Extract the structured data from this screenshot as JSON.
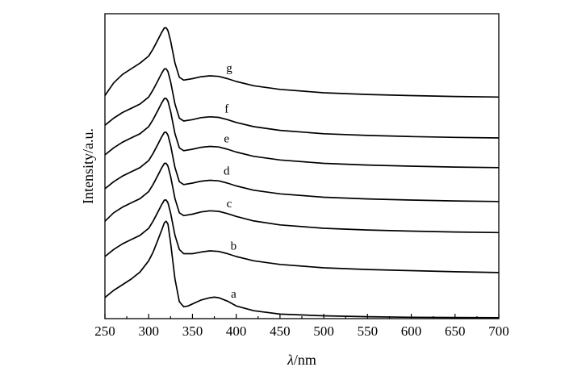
{
  "chart_data": {
    "type": "line",
    "title": "",
    "xlabel_symbol": "λ",
    "xlabel_unit": "/nm",
    "ylabel": "Intensity/a.u.",
    "xlim": [
      250,
      700
    ],
    "x_ticks": [
      "250",
      "300",
      "350",
      "400",
      "450",
      "500",
      "550",
      "600",
      "650",
      "700"
    ],
    "y_ticks_shown": false,
    "grid": false,
    "legend": "inline curve labels",
    "series": [
      {
        "name": "a",
        "x": [
          250,
          260,
          270,
          280,
          290,
          300,
          305,
          310,
          315,
          318,
          320,
          322,
          325,
          330,
          335,
          340,
          345,
          350,
          360,
          370,
          375,
          380,
          390,
          400,
          420,
          450,
          500,
          550,
          600,
          650,
          700
        ],
        "y": [
          0.75,
          1.0,
          1.2,
          1.4,
          1.65,
          2.05,
          2.35,
          2.75,
          3.15,
          3.4,
          3.45,
          3.35,
          2.7,
          1.4,
          0.6,
          0.42,
          0.45,
          0.52,
          0.66,
          0.74,
          0.76,
          0.74,
          0.62,
          0.45,
          0.28,
          0.16,
          0.1,
          0.07,
          0.05,
          0.04,
          0.03
        ]
      },
      {
        "name": "b",
        "x": [
          250,
          260,
          270,
          280,
          290,
          300,
          305,
          310,
          315,
          318,
          320,
          322,
          325,
          330,
          335,
          340,
          350,
          360,
          370,
          380,
          390,
          400,
          420,
          450,
          500,
          550,
          600,
          650,
          700
        ],
        "y": [
          2.2,
          2.45,
          2.65,
          2.8,
          2.95,
          3.2,
          3.45,
          3.75,
          4.05,
          4.2,
          4.2,
          4.1,
          3.75,
          2.95,
          2.45,
          2.3,
          2.3,
          2.36,
          2.4,
          2.38,
          2.3,
          2.2,
          2.05,
          1.92,
          1.8,
          1.74,
          1.7,
          1.66,
          1.63
        ]
      },
      {
        "name": "c",
        "x": [
          250,
          260,
          270,
          280,
          290,
          300,
          305,
          310,
          315,
          318,
          320,
          322,
          325,
          330,
          335,
          340,
          350,
          360,
          370,
          380,
          390,
          400,
          420,
          450,
          500,
          550,
          600,
          650,
          700
        ],
        "y": [
          3.45,
          3.75,
          3.95,
          4.1,
          4.25,
          4.5,
          4.75,
          5.05,
          5.35,
          5.5,
          5.5,
          5.4,
          5.05,
          4.25,
          3.75,
          3.65,
          3.7,
          3.78,
          3.82,
          3.8,
          3.72,
          3.62,
          3.46,
          3.32,
          3.2,
          3.14,
          3.1,
          3.07,
          3.05
        ]
      },
      {
        "name": "d",
        "x": [
          250,
          260,
          270,
          280,
          290,
          300,
          305,
          310,
          315,
          318,
          320,
          322,
          325,
          330,
          335,
          340,
          350,
          360,
          370,
          380,
          390,
          400,
          420,
          450,
          500,
          550,
          600,
          650,
          700
        ],
        "y": [
          4.6,
          4.85,
          5.05,
          5.2,
          5.35,
          5.6,
          5.85,
          6.15,
          6.45,
          6.6,
          6.6,
          6.5,
          6.15,
          5.35,
          4.85,
          4.75,
          4.8,
          4.87,
          4.9,
          4.88,
          4.8,
          4.7,
          4.55,
          4.42,
          4.3,
          4.24,
          4.2,
          4.17,
          4.15
        ]
      },
      {
        "name": "e",
        "x": [
          250,
          260,
          270,
          280,
          290,
          300,
          305,
          310,
          315,
          318,
          320,
          322,
          325,
          330,
          335,
          340,
          350,
          360,
          370,
          380,
          390,
          400,
          420,
          450,
          500,
          550,
          600,
          650,
          700
        ],
        "y": [
          5.8,
          6.05,
          6.25,
          6.4,
          6.55,
          6.8,
          7.05,
          7.35,
          7.65,
          7.8,
          7.8,
          7.7,
          7.35,
          6.55,
          6.05,
          5.95,
          6.0,
          6.07,
          6.1,
          6.08,
          6.0,
          5.9,
          5.75,
          5.62,
          5.5,
          5.44,
          5.4,
          5.37,
          5.35
        ]
      },
      {
        "name": "f",
        "x": [
          250,
          260,
          270,
          280,
          290,
          300,
          305,
          310,
          315,
          318,
          320,
          322,
          325,
          330,
          335,
          340,
          350,
          360,
          370,
          380,
          390,
          400,
          420,
          450,
          500,
          550,
          600,
          650,
          700
        ],
        "y": [
          6.85,
          7.1,
          7.3,
          7.45,
          7.6,
          7.85,
          8.1,
          8.4,
          8.7,
          8.85,
          8.85,
          8.75,
          8.4,
          7.6,
          7.1,
          7.0,
          7.05,
          7.12,
          7.15,
          7.13,
          7.05,
          6.95,
          6.8,
          6.67,
          6.55,
          6.49,
          6.45,
          6.42,
          6.4
        ]
      },
      {
        "name": "g",
        "x": [
          250,
          260,
          270,
          280,
          290,
          300,
          305,
          310,
          315,
          318,
          320,
          322,
          325,
          330,
          335,
          340,
          350,
          360,
          370,
          380,
          390,
          400,
          420,
          450,
          500,
          550,
          600,
          650,
          700
        ],
        "y": [
          7.9,
          8.35,
          8.65,
          8.85,
          9.05,
          9.3,
          9.55,
          9.85,
          10.15,
          10.3,
          10.3,
          10.2,
          9.85,
          9.05,
          8.55,
          8.45,
          8.5,
          8.57,
          8.6,
          8.58,
          8.5,
          8.4,
          8.25,
          8.12,
          8.0,
          7.94,
          7.9,
          7.87,
          7.85
        ]
      }
    ],
    "labels": [
      {
        "text": "a",
        "x": 397,
        "y": 0.75
      },
      {
        "text": "b",
        "x": 397,
        "y": 2.45
      },
      {
        "text": "c",
        "x": 392,
        "y": 3.95
      },
      {
        "text": "d",
        "x": 389,
        "y": 5.1
      },
      {
        "text": "e",
        "x": 389,
        "y": 6.25
      },
      {
        "text": "f",
        "x": 389,
        "y": 7.3
      },
      {
        "text": "g",
        "x": 392,
        "y": 8.75
      }
    ],
    "ylim": [
      0,
      10.8
    ]
  }
}
